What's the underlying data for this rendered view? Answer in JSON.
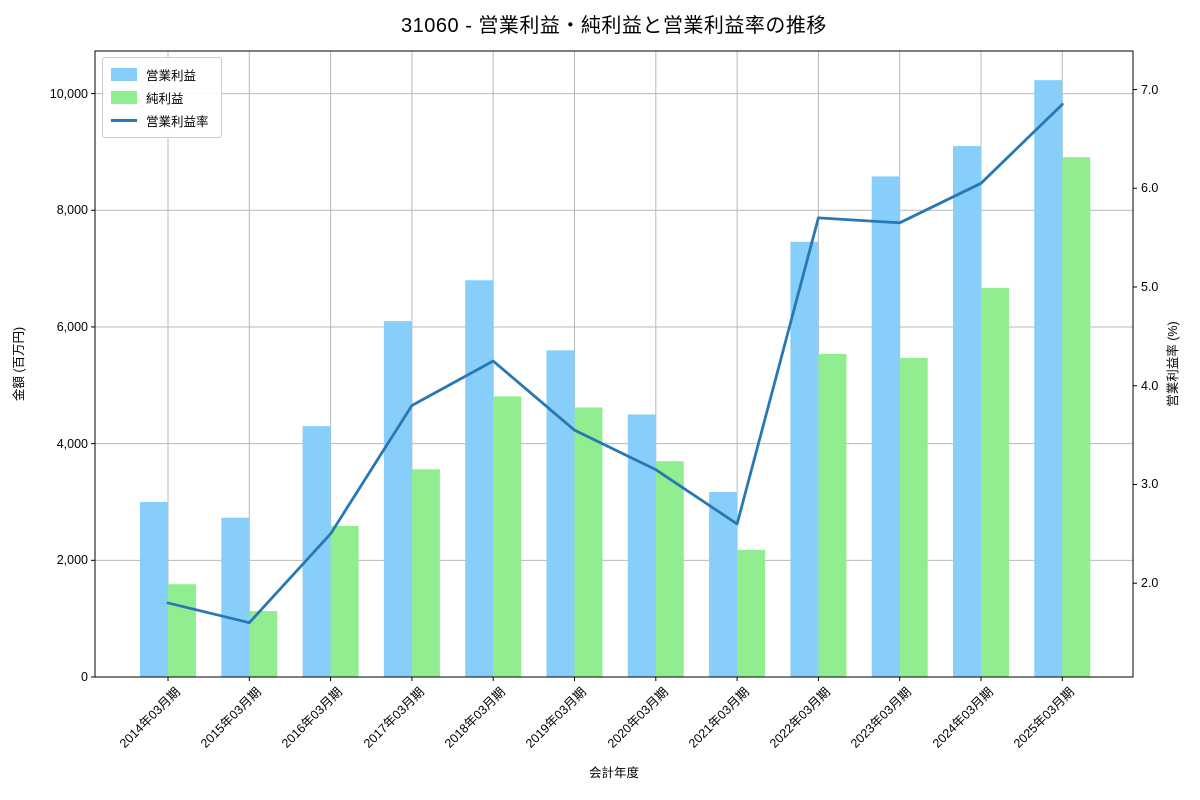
{
  "chart_data": {
    "type": "bar",
    "title": "31060 - 営業利益・純利益と営業利益率の推移",
    "xlabel": "会計年度",
    "ylabel_left": "金額 (百万円)",
    "ylabel_right": "営業利益率 (%)",
    "categories": [
      "2014年03月期",
      "2015年03月期",
      "2016年03月期",
      "2017年03月期",
      "2018年03月期",
      "2019年03月期",
      "2020年03月期",
      "2021年03月期",
      "2022年03月期",
      "2023年03月期",
      "2024年03月期",
      "2025年03月期"
    ],
    "series": [
      {
        "name": "営業利益",
        "color": "#87CEFA",
        "axis": "left",
        "values": [
          3000,
          2730,
          4300,
          6100,
          6800,
          5600,
          4500,
          3170,
          7460,
          8580,
          9100,
          10230
        ]
      },
      {
        "name": "純利益",
        "color": "#90EE90",
        "axis": "left",
        "values": [
          1590,
          1130,
          2590,
          3560,
          4810,
          4620,
          3700,
          2180,
          5540,
          5470,
          6670,
          8910
        ]
      }
    ],
    "line_series": {
      "name": "営業利益率",
      "color": "#2878B4",
      "axis": "right",
      "values": [
        1.8,
        1.6,
        2.5,
        3.8,
        4.25,
        3.55,
        3.15,
        2.6,
        5.7,
        5.65,
        6.05,
        6.85
      ]
    },
    "left_axis": {
      "lim": [
        0,
        10730
      ],
      "ticks": [
        0,
        2000,
        4000,
        6000,
        8000,
        10000
      ],
      "tick_labels": [
        "0",
        "2,000",
        "4,000",
        "6,000",
        "8,000",
        "10,000"
      ]
    },
    "right_axis": {
      "lim": [
        1.05,
        7.39
      ],
      "ticks": [
        2,
        3,
        4,
        5,
        6,
        7
      ],
      "tick_labels": [
        "2.0",
        "3.0",
        "4.0",
        "5.0",
        "6.0",
        "7.0"
      ]
    },
    "grid": true,
    "grid_color": "#B9B9B9",
    "spine_color": "#000000",
    "legend_position": "upper left"
  }
}
